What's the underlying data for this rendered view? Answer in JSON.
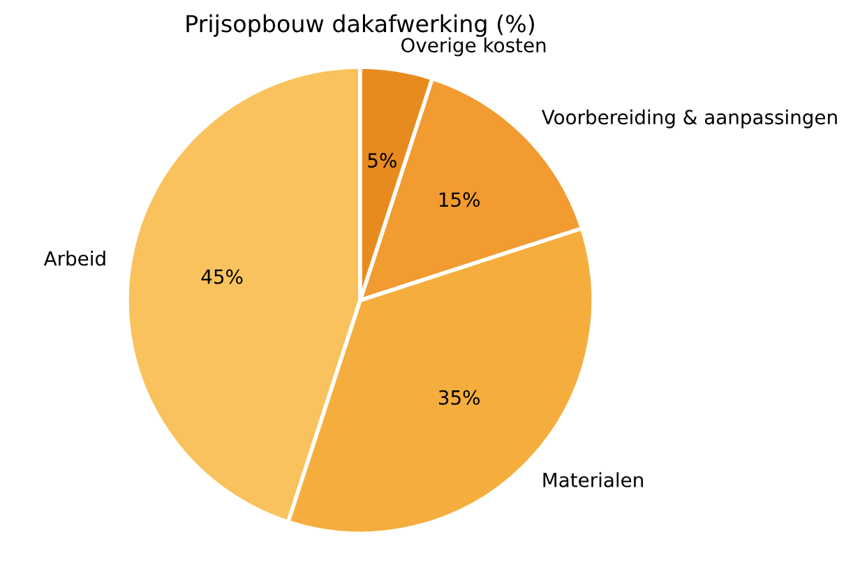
{
  "chart_data": {
    "type": "pie",
    "title": "Prijsopbouw dakafwerking (%)",
    "categories": [
      "Arbeid",
      "Materialen",
      "Voorbereiding & aanpassingen",
      "Overige kosten"
    ],
    "values": [
      45,
      35,
      15,
      5
    ],
    "colors": [
      "#f9c25c",
      "#f5ae3d",
      "#f29b30",
      "#e88b1f"
    ],
    "value_labels": [
      "45%",
      "35%",
      "15%",
      "5%"
    ]
  }
}
